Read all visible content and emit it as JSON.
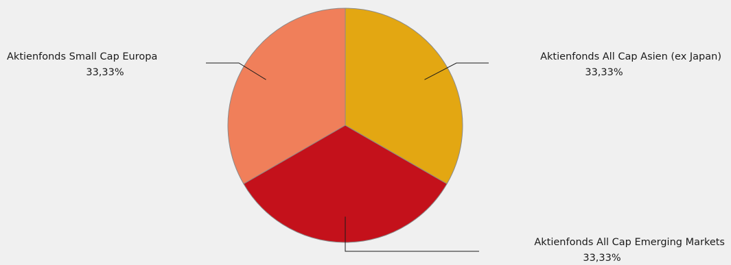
{
  "chart_data": {
    "type": "pie",
    "slices": [
      {
        "label": "Aktienfonds All Cap  Asien (ex Japan)",
        "value": 33.33,
        "percent_label": "33,33%",
        "color": "#e3a712"
      },
      {
        "label": "Aktienfonds All Cap  Emerging Markets",
        "value": 33.33,
        "percent_label": "33,33%",
        "color": "#c4111b"
      },
      {
        "label": "Aktienfonds Small Cap  Europa",
        "value": 33.33,
        "percent_label": "33,33%",
        "color": "#f07f5a"
      }
    ],
    "start_angle_deg": 0,
    "direction": "clockwise",
    "slice_border_color": "#8a8a8a",
    "leader_line_color": "#1a1a1a",
    "background": "#f0f0f0"
  }
}
